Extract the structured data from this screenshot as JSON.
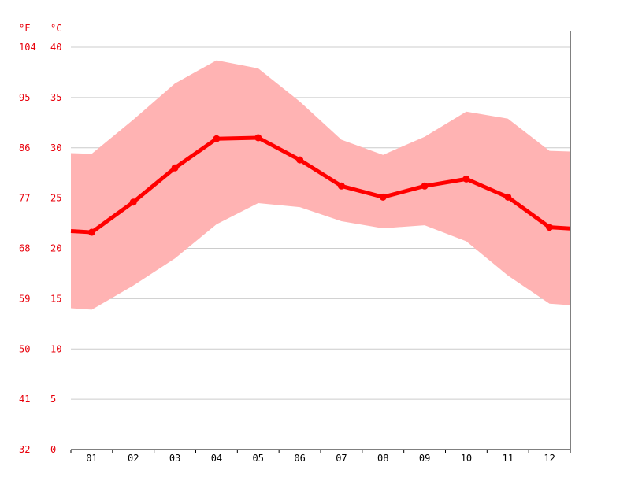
{
  "chart_data": {
    "type": "line",
    "title": "",
    "xlabel": "",
    "ylabel": "",
    "unit_f": "°F",
    "unit_c": "°C",
    "categories": [
      "01",
      "02",
      "03",
      "04",
      "05",
      "06",
      "07",
      "08",
      "09",
      "10",
      "11",
      "12"
    ],
    "ylim": [
      0,
      40
    ],
    "yticks_c": [
      "0",
      "5",
      "10",
      "15",
      "20",
      "25",
      "30",
      "35",
      "40"
    ],
    "yticks_f": [
      "32",
      "41",
      "50",
      "59",
      "68",
      "77",
      "86",
      "95",
      "104"
    ],
    "grid": true,
    "series": [
      {
        "role": "mean",
        "values": [
          21.6,
          24.6,
          28.0,
          30.9,
          31.0,
          28.8,
          26.2,
          25.1,
          26.2,
          26.9,
          25.1,
          22.1
        ]
      },
      {
        "role": "max",
        "values": [
          29.4,
          32.8,
          36.4,
          38.7,
          37.9,
          34.6,
          30.8,
          29.3,
          31.1,
          33.6,
          32.9,
          29.7
        ]
      },
      {
        "role": "min",
        "values": [
          13.9,
          16.3,
          19.0,
          22.4,
          24.5,
          24.1,
          22.7,
          22.0,
          22.3,
          20.7,
          17.3,
          14.5
        ]
      }
    ],
    "colors": {
      "line": "#ff0000",
      "band": "#ffb3b3",
      "grid": "#cccccc",
      "axis": "#000000",
      "label": "#e8000b"
    }
  }
}
